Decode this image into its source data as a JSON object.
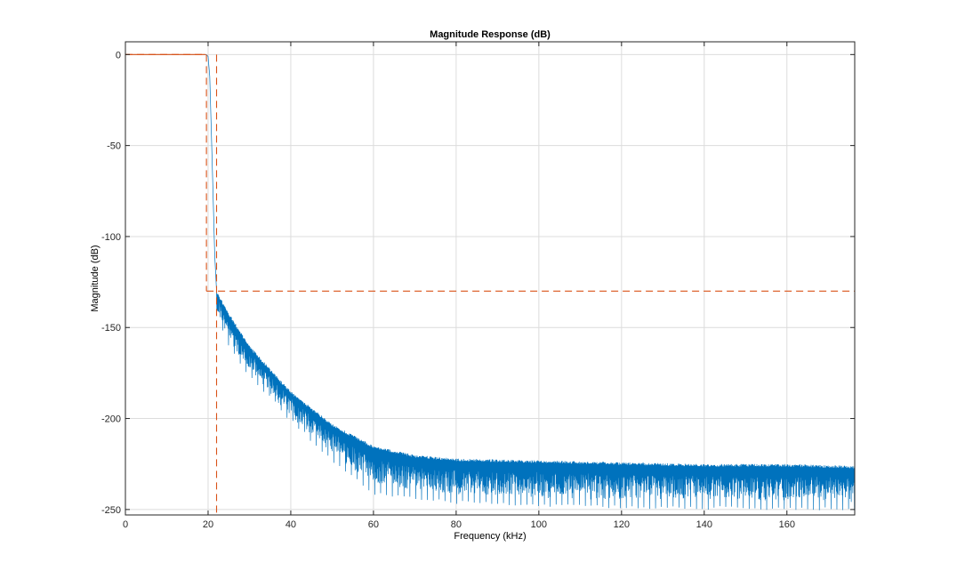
{
  "chart_data": {
    "type": "line",
    "title": "Magnitude Response (dB)",
    "xlabel": "Frequency (kHz)",
    "ylabel": "Magnitude (dB)",
    "xlim": [
      0,
      176.4
    ],
    "ylim": [
      -253,
      7
    ],
    "xticks": [
      0,
      20,
      40,
      60,
      80,
      100,
      120,
      140,
      160
    ],
    "yticks": [
      0,
      -50,
      -100,
      -150,
      -200,
      -250
    ],
    "xtick_labels": [
      "0",
      "20",
      "40",
      "60",
      "80",
      "100",
      "120",
      "140",
      "160"
    ],
    "ytick_labels": [
      "0",
      "-50",
      "-100",
      "-150",
      "-200",
      "-250"
    ],
    "grid": true,
    "series": [
      {
        "role": "magnitude-response",
        "color": "#0072BD",
        "passband_edge_khz": 20,
        "transition": [
          [
            0,
            0
          ],
          [
            19.5,
            0
          ],
          [
            20.0,
            -1
          ],
          [
            20.4,
            -12
          ],
          [
            21.0,
            -60
          ],
          [
            21.6,
            -110
          ],
          [
            22.05,
            -130
          ]
        ],
        "stopband_envelope": [
          [
            22.05,
            -130
          ],
          [
            25,
            -142
          ],
          [
            30,
            -160
          ],
          [
            40,
            -185
          ],
          [
            50,
            -203
          ],
          [
            60,
            -215
          ],
          [
            70,
            -220
          ],
          [
            80,
            -222
          ],
          [
            100,
            -223
          ],
          [
            120,
            -224
          ],
          [
            140,
            -225
          ],
          [
            160,
            -225
          ],
          [
            176.4,
            -226
          ]
        ],
        "stopband_floor": [
          [
            22.05,
            -140
          ],
          [
            25,
            -160
          ],
          [
            30,
            -175
          ],
          [
            40,
            -200
          ],
          [
            50,
            -222
          ],
          [
            60,
            -240
          ],
          [
            80,
            -245
          ],
          [
            100,
            -247
          ],
          [
            176.4,
            -249
          ]
        ]
      },
      {
        "role": "specification-mask",
        "color": "#D95319",
        "style": "dashed",
        "segments": [
          [
            [
              0,
              0
            ],
            [
              19.6,
              0
            ]
          ],
          [
            [
              19.6,
              0
            ],
            [
              19.6,
              -130
            ]
          ],
          [
            [
              19.6,
              -130
            ],
            [
              176.4,
              -130
            ]
          ],
          [
            [
              22.05,
              0
            ],
            [
              22.05,
              -253
            ]
          ]
        ]
      }
    ]
  }
}
